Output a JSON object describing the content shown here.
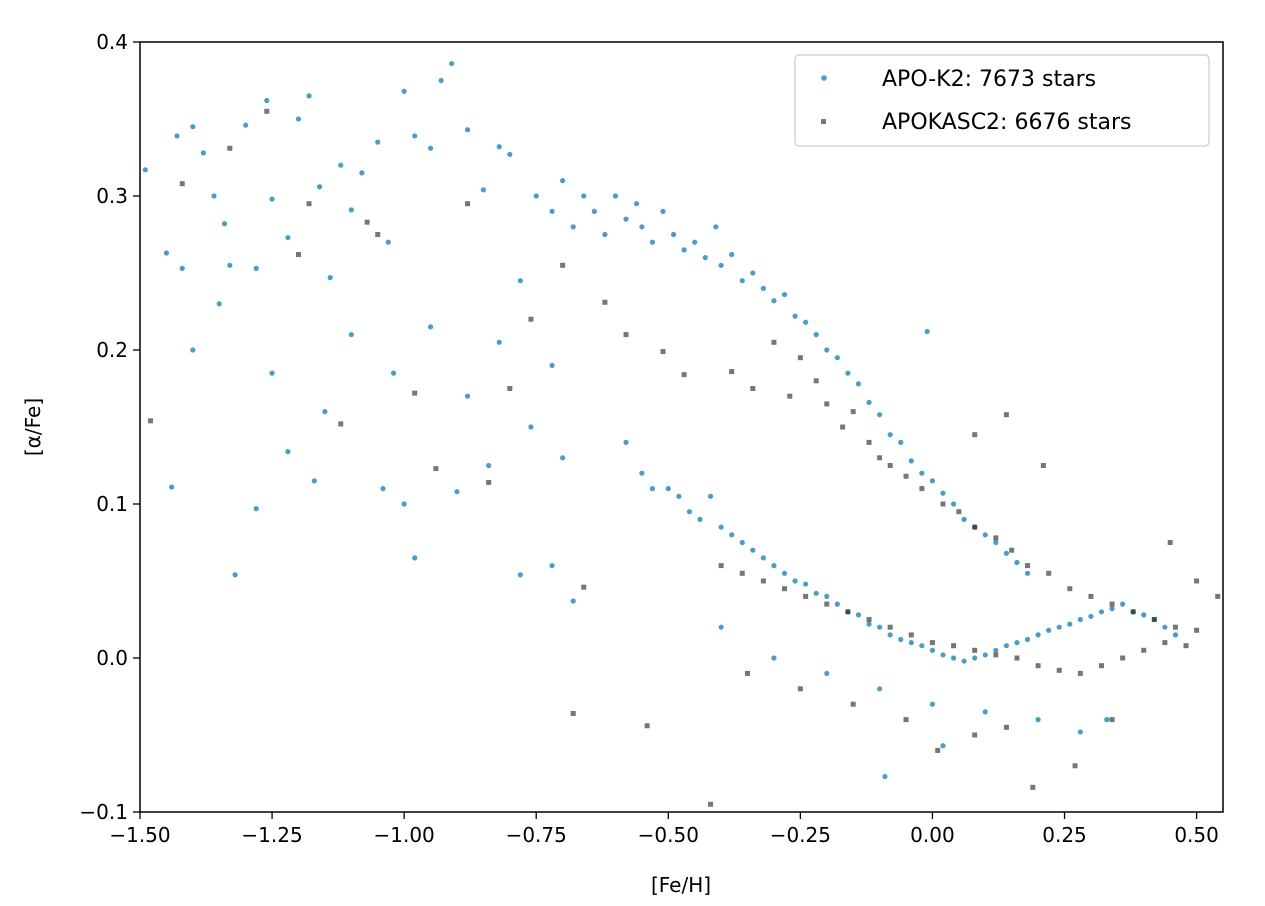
{
  "chart_data": {
    "type": "scatter",
    "title": "",
    "xlabel": "[Fe/H]",
    "ylabel": "[α/Fe]",
    "xlim": [
      -1.5,
      0.55
    ],
    "ylim": [
      -0.1,
      0.4
    ],
    "xticks": [
      -1.5,
      -1.25,
      -1.0,
      -0.75,
      -0.5,
      -0.25,
      0.0,
      0.25,
      0.5
    ],
    "xtick_labels": [
      "−1.50",
      "−1.25",
      "−1.00",
      "−0.75",
      "−0.50",
      "−0.25",
      "0.00",
      "0.25",
      "0.50"
    ],
    "yticks": [
      -0.1,
      0.0,
      0.1,
      0.2,
      0.3,
      0.4
    ],
    "ytick_labels": [
      "−0.1",
      "0.0",
      "0.1",
      "0.2",
      "0.3",
      "0.4"
    ],
    "grid": false,
    "legend_position": "top-right",
    "series": [
      {
        "name": "APO-K2: 7673 stars",
        "marker": "circle",
        "color": "#2b8cbe",
        "points": [
          [
            -1.49,
            0.317
          ],
          [
            -1.45,
            0.263
          ],
          [
            -1.43,
            0.339
          ],
          [
            -1.42,
            0.253
          ],
          [
            -1.4,
            0.345
          ],
          [
            -1.38,
            0.328
          ],
          [
            -1.36,
            0.3
          ],
          [
            -1.34,
            0.282
          ],
          [
            -1.33,
            0.255
          ],
          [
            -1.3,
            0.346
          ],
          [
            -1.28,
            0.253
          ],
          [
            -1.26,
            0.362
          ],
          [
            -1.25,
            0.298
          ],
          [
            -1.22,
            0.273
          ],
          [
            -1.2,
            0.35
          ],
          [
            -1.18,
            0.365
          ],
          [
            -1.16,
            0.306
          ],
          [
            -1.14,
            0.247
          ],
          [
            -1.12,
            0.32
          ],
          [
            -1.1,
            0.291
          ],
          [
            -1.08,
            0.315
          ],
          [
            -1.05,
            0.335
          ],
          [
            -1.03,
            0.27
          ],
          [
            -1.0,
            0.368
          ],
          [
            -0.98,
            0.339
          ],
          [
            -0.95,
            0.331
          ],
          [
            -0.93,
            0.375
          ],
          [
            -0.91,
            0.386
          ],
          [
            -0.88,
            0.343
          ],
          [
            -0.85,
            0.304
          ],
          [
            -0.82,
            0.332
          ],
          [
            -0.8,
            0.327
          ],
          [
            -1.44,
            0.111
          ],
          [
            -1.32,
            0.054
          ],
          [
            -1.28,
            0.097
          ],
          [
            -1.22,
            0.134
          ],
          [
            -1.17,
            0.115
          ],
          [
            -1.04,
            0.11
          ],
          [
            -0.98,
            0.065
          ],
          [
            -1.0,
            0.1
          ],
          [
            -0.9,
            0.108
          ],
          [
            -0.84,
            0.125
          ],
          [
            -0.78,
            0.054
          ],
          [
            -0.72,
            0.06
          ],
          [
            -0.68,
            0.037
          ],
          [
            -1.4,
            0.2
          ],
          [
            -1.35,
            0.23
          ],
          [
            -1.25,
            0.185
          ],
          [
            -1.15,
            0.16
          ],
          [
            -1.1,
            0.21
          ],
          [
            -1.02,
            0.185
          ],
          [
            -0.95,
            0.215
          ],
          [
            -0.88,
            0.17
          ],
          [
            -0.82,
            0.205
          ],
          [
            -0.78,
            0.245
          ],
          [
            -0.76,
            0.15
          ],
          [
            -0.72,
            0.19
          ],
          [
            -0.7,
            0.13
          ],
          [
            -0.75,
            0.3
          ],
          [
            -0.72,
            0.29
          ],
          [
            -0.7,
            0.31
          ],
          [
            -0.68,
            0.28
          ],
          [
            -0.66,
            0.3
          ],
          [
            -0.64,
            0.29
          ],
          [
            -0.62,
            0.275
          ],
          [
            -0.6,
            0.3
          ],
          [
            -0.58,
            0.285
          ],
          [
            -0.56,
            0.295
          ],
          [
            -0.55,
            0.28
          ],
          [
            -0.53,
            0.27
          ],
          [
            -0.51,
            0.29
          ],
          [
            -0.49,
            0.275
          ],
          [
            -0.47,
            0.265
          ],
          [
            -0.45,
            0.27
          ],
          [
            -0.43,
            0.26
          ],
          [
            -0.41,
            0.28
          ],
          [
            -0.4,
            0.255
          ],
          [
            -0.38,
            0.262
          ],
          [
            -0.36,
            0.245
          ],
          [
            -0.34,
            0.25
          ],
          [
            -0.32,
            0.24
          ],
          [
            -0.3,
            0.232
          ],
          [
            -0.28,
            0.236
          ],
          [
            -0.26,
            0.222
          ],
          [
            -0.24,
            0.218
          ],
          [
            -0.22,
            0.21
          ],
          [
            -0.2,
            0.2
          ],
          [
            -0.18,
            0.195
          ],
          [
            -0.16,
            0.185
          ],
          [
            -0.14,
            0.178
          ],
          [
            -0.12,
            0.166
          ],
          [
            -0.1,
            0.158
          ],
          [
            -0.08,
            0.145
          ],
          [
            -0.06,
            0.14
          ],
          [
            -0.04,
            0.128
          ],
          [
            -0.02,
            0.12
          ],
          [
            0.0,
            0.115
          ],
          [
            0.02,
            0.107
          ],
          [
            0.04,
            0.1
          ],
          [
            0.06,
            0.09
          ],
          [
            0.08,
            0.085
          ],
          [
            0.1,
            0.08
          ],
          [
            0.12,
            0.075
          ],
          [
            0.14,
            0.068
          ],
          [
            0.16,
            0.062
          ],
          [
            0.18,
            0.055
          ],
          [
            -0.58,
            0.14
          ],
          [
            -0.55,
            0.12
          ],
          [
            -0.53,
            0.11
          ],
          [
            -0.5,
            0.11
          ],
          [
            -0.48,
            0.105
          ],
          [
            -0.46,
            0.095
          ],
          [
            -0.44,
            0.09
          ],
          [
            -0.42,
            0.105
          ],
          [
            -0.4,
            0.085
          ],
          [
            -0.38,
            0.08
          ],
          [
            -0.36,
            0.075
          ],
          [
            -0.34,
            0.07
          ],
          [
            -0.32,
            0.065
          ],
          [
            -0.3,
            0.06
          ],
          [
            -0.28,
            0.055
          ],
          [
            -0.26,
            0.05
          ],
          [
            -0.24,
            0.048
          ],
          [
            -0.22,
            0.042
          ],
          [
            -0.2,
            0.04
          ],
          [
            -0.18,
            0.035
          ],
          [
            -0.16,
            0.03
          ],
          [
            -0.14,
            0.028
          ],
          [
            -0.12,
            0.022
          ],
          [
            -0.1,
            0.02
          ],
          [
            -0.08,
            0.015
          ],
          [
            -0.06,
            0.012
          ],
          [
            -0.04,
            0.01
          ],
          [
            -0.02,
            0.008
          ],
          [
            0.0,
            0.005
          ],
          [
            0.02,
            0.002
          ],
          [
            0.04,
            0.0
          ],
          [
            0.06,
            -0.002
          ],
          [
            0.08,
            0.0
          ],
          [
            0.1,
            0.002
          ],
          [
            0.12,
            0.005
          ],
          [
            0.14,
            0.008
          ],
          [
            0.16,
            0.01
          ],
          [
            0.18,
            0.012
          ],
          [
            0.2,
            0.015
          ],
          [
            0.22,
            0.018
          ],
          [
            0.24,
            0.02
          ],
          [
            0.26,
            0.022
          ],
          [
            0.28,
            0.025
          ],
          [
            0.3,
            0.027
          ],
          [
            0.32,
            0.03
          ],
          [
            0.34,
            0.032
          ],
          [
            0.36,
            0.035
          ],
          [
            0.38,
            0.03
          ],
          [
            0.4,
            0.028
          ],
          [
            0.42,
            0.025
          ],
          [
            0.44,
            0.02
          ],
          [
            0.46,
            0.015
          ],
          [
            -0.4,
            0.02
          ],
          [
            -0.3,
            0.0
          ],
          [
            -0.2,
            -0.01
          ],
          [
            -0.1,
            -0.02
          ],
          [
            0.0,
            -0.03
          ],
          [
            0.1,
            -0.035
          ],
          [
            0.2,
            -0.04
          ],
          [
            0.28,
            -0.048
          ],
          [
            -0.09,
            -0.077
          ],
          [
            -0.01,
            0.212
          ],
          [
            0.02,
            -0.057
          ],
          [
            0.33,
            -0.04
          ]
        ]
      },
      {
        "name": "APOKASC2: 6676 stars",
        "marker": "square",
        "color": "#1a1a1a",
        "points": [
          [
            -1.48,
            0.154
          ],
          [
            -1.42,
            0.308
          ],
          [
            -1.33,
            0.331
          ],
          [
            -1.26,
            0.355
          ],
          [
            -1.2,
            0.262
          ],
          [
            -1.18,
            0.295
          ],
          [
            -1.12,
            0.152
          ],
          [
            -1.07,
            0.283
          ],
          [
            -1.05,
            0.275
          ],
          [
            -0.98,
            0.172
          ],
          [
            -0.94,
            0.123
          ],
          [
            -0.88,
            0.295
          ],
          [
            -0.84,
            0.114
          ],
          [
            -0.8,
            0.175
          ],
          [
            -0.76,
            0.22
          ],
          [
            -0.7,
            0.255
          ],
          [
            -0.68,
            -0.036
          ],
          [
            -0.66,
            0.046
          ],
          [
            -0.62,
            0.231
          ],
          [
            -0.58,
            0.21
          ],
          [
            -0.54,
            -0.044
          ],
          [
            -0.51,
            0.199
          ],
          [
            -0.47,
            0.184
          ],
          [
            -0.42,
            -0.095
          ],
          [
            -0.38,
            0.186
          ],
          [
            -0.34,
            0.175
          ],
          [
            -0.3,
            0.205
          ],
          [
            -0.27,
            0.17
          ],
          [
            -0.25,
            0.195
          ],
          [
            -0.22,
            0.18
          ],
          [
            -0.2,
            0.165
          ],
          [
            -0.17,
            0.15
          ],
          [
            -0.15,
            0.16
          ],
          [
            -0.12,
            0.14
          ],
          [
            -0.1,
            0.13
          ],
          [
            -0.08,
            0.125
          ],
          [
            -0.05,
            0.118
          ],
          [
            -0.02,
            0.11
          ],
          [
            0.02,
            0.1
          ],
          [
            0.05,
            0.095
          ],
          [
            0.08,
            0.085
          ],
          [
            0.12,
            0.078
          ],
          [
            0.15,
            0.07
          ],
          [
            0.18,
            0.06
          ],
          [
            0.22,
            0.055
          ],
          [
            0.26,
            0.045
          ],
          [
            0.3,
            0.04
          ],
          [
            0.34,
            0.035
          ],
          [
            0.38,
            0.03
          ],
          [
            0.42,
            0.025
          ],
          [
            0.46,
            0.02
          ],
          [
            0.5,
            0.018
          ],
          [
            0.54,
            0.04
          ],
          [
            -0.4,
            0.06
          ],
          [
            -0.36,
            0.055
          ],
          [
            -0.32,
            0.05
          ],
          [
            -0.28,
            0.045
          ],
          [
            -0.24,
            0.04
          ],
          [
            -0.2,
            0.035
          ],
          [
            -0.16,
            0.03
          ],
          [
            -0.12,
            0.025
          ],
          [
            -0.08,
            0.02
          ],
          [
            -0.04,
            0.015
          ],
          [
            0.0,
            0.01
          ],
          [
            0.04,
            0.008
          ],
          [
            0.08,
            0.005
          ],
          [
            0.12,
            0.002
          ],
          [
            0.16,
            0.0
          ],
          [
            0.2,
            -0.005
          ],
          [
            0.24,
            -0.008
          ],
          [
            0.28,
            -0.01
          ],
          [
            0.32,
            -0.005
          ],
          [
            0.36,
            0.0
          ],
          [
            0.4,
            0.005
          ],
          [
            0.44,
            0.01
          ],
          [
            0.48,
            0.008
          ],
          [
            -0.35,
            -0.01
          ],
          [
            -0.25,
            -0.02
          ],
          [
            -0.15,
            -0.03
          ],
          [
            -0.05,
            -0.04
          ],
          [
            0.01,
            -0.06
          ],
          [
            0.08,
            -0.05
          ],
          [
            0.14,
            -0.045
          ],
          [
            0.19,
            -0.084
          ],
          [
            0.27,
            -0.07
          ],
          [
            0.34,
            -0.04
          ],
          [
            0.5,
            0.05
          ],
          [
            0.45,
            0.075
          ],
          [
            0.08,
            0.145
          ],
          [
            0.14,
            0.158
          ],
          [
            0.21,
            0.125
          ]
        ]
      }
    ]
  }
}
